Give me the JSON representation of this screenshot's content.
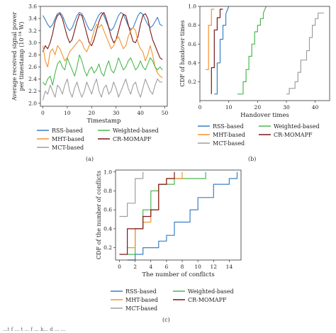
{
  "colors": {
    "rss": "#3b7fc4",
    "mht": "#f5922b",
    "weighted": "#4cb850",
    "mct": "#9e9e9e",
    "cr": "#7a1717"
  },
  "legend_labels": {
    "rss": "RSS-based",
    "mht": "MHT-based",
    "mct": "MCT-based",
    "weighted": "Weighted-based",
    "cr": "CR-MOMAPF"
  },
  "captions": {
    "a": "(a)",
    "b": "(b)",
    "c": "(c)"
  },
  "bottom_text": "...t f ... t ... f ... k... d ... ...",
  "chart_data": [
    {
      "id": "a",
      "type": "line",
      "xlabel": "Timestamp",
      "ylabel_line1": "Average received signal power",
      "ylabel_line2": "per timestamp (10",
      "ylabel_exp": "-14",
      "ylabel_unit": " W)",
      "xlim": [
        -1,
        51
      ],
      "ylim": [
        1.95,
        3.6
      ],
      "xticks": [
        "0",
        "10",
        "20",
        "30",
        "40",
        "50"
      ],
      "xtick_values": [
        0,
        10,
        20,
        30,
        40,
        50
      ],
      "yticks": [
        "2.0",
        "2.2",
        "2.4",
        "2.6",
        "2.8",
        "3.0",
        "3.2",
        "3.4",
        "3.6"
      ],
      "ytick_values": [
        2.0,
        2.2,
        2.4,
        2.6,
        2.8,
        3.0,
        3.2,
        3.4,
        3.6
      ],
      "series": [
        {
          "key": "rss",
          "name": "RSS-based",
          "x": [
            0,
            1,
            2,
            3,
            4,
            5,
            6,
            7,
            8,
            9,
            10,
            11,
            12,
            13,
            14,
            15,
            16,
            17,
            18,
            19,
            20,
            21,
            22,
            23,
            24,
            25,
            26,
            27,
            28,
            29,
            30,
            31,
            32,
            33,
            34,
            35,
            36,
            37,
            38,
            39,
            40,
            41,
            42,
            43,
            44,
            45,
            46,
            47,
            48,
            49
          ],
          "values": [
            3.45,
            3.38,
            3.3,
            3.25,
            3.3,
            3.4,
            3.48,
            3.5,
            3.45,
            3.35,
            3.25,
            3.2,
            3.25,
            3.35,
            3.45,
            3.5,
            3.48,
            3.4,
            3.3,
            3.22,
            3.2,
            3.28,
            3.38,
            3.46,
            3.5,
            3.45,
            3.35,
            3.25,
            3.2,
            3.25,
            3.35,
            3.45,
            3.5,
            3.47,
            3.38,
            3.28,
            3.22,
            3.25,
            3.35,
            3.45,
            3.5,
            3.47,
            3.38,
            3.3,
            3.25,
            3.28,
            3.35,
            3.42,
            3.3,
            3.28
          ]
        },
        {
          "key": "cr",
          "name": "CR-MOMAPF",
          "x": [
            0,
            1,
            2,
            3,
            4,
            5,
            6,
            7,
            8,
            9,
            10,
            11,
            12,
            13,
            14,
            15,
            16,
            17,
            18,
            19,
            20,
            21,
            22,
            23,
            24,
            25,
            26,
            27,
            28,
            29,
            30,
            31,
            32,
            33,
            34,
            35,
            36,
            37,
            38,
            39,
            40,
            41,
            42,
            43,
            44,
            45,
            46,
            47,
            48,
            49
          ],
          "values": [
            2.85,
            2.95,
            2.9,
            3.0,
            3.15,
            3.35,
            3.45,
            3.48,
            3.4,
            3.25,
            3.1,
            3.0,
            3.05,
            3.2,
            3.35,
            3.47,
            3.45,
            3.3,
            3.15,
            3.0,
            2.95,
            3.05,
            3.2,
            3.35,
            3.45,
            3.5,
            3.4,
            3.25,
            3.1,
            3.0,
            3.05,
            3.2,
            3.35,
            3.47,
            3.45,
            3.3,
            3.15,
            3.02,
            3.0,
            3.1,
            3.3,
            3.45,
            3.48,
            3.4,
            3.2,
            3.05,
            2.95,
            2.85,
            2.75,
            2.72
          ]
        },
        {
          "key": "mht",
          "name": "MHT-based",
          "x": [
            0,
            1,
            2,
            3,
            4,
            5,
            6,
            7,
            8,
            9,
            10,
            11,
            12,
            13,
            14,
            15,
            16,
            17,
            18,
            19,
            20,
            21,
            22,
            23,
            24,
            25,
            26,
            27,
            28,
            29,
            30,
            31,
            32,
            33,
            34,
            35,
            36,
            37,
            38,
            39,
            40,
            41,
            42,
            43,
            44,
            45,
            46,
            47,
            48,
            49
          ],
          "values": [
            2.95,
            2.7,
            2.6,
            2.85,
            2.9,
            2.8,
            2.95,
            2.9,
            2.8,
            2.7,
            2.75,
            2.85,
            2.9,
            2.95,
            3.0,
            3.05,
            3.0,
            2.9,
            2.85,
            2.95,
            3.05,
            3.2,
            3.3,
            3.25,
            3.3,
            3.2,
            3.1,
            3.0,
            2.9,
            2.95,
            3.05,
            3.1,
            3.0,
            2.9,
            2.95,
            3.1,
            3.2,
            3.25,
            3.2,
            3.0,
            2.9,
            2.85,
            2.7,
            2.8,
            2.95,
            2.8,
            2.6,
            2.5,
            2.45,
            2.42
          ]
        },
        {
          "key": "weighted",
          "name": "Weighted-based",
          "x": [
            0,
            1,
            2,
            3,
            4,
            5,
            6,
            7,
            8,
            9,
            10,
            11,
            12,
            13,
            14,
            15,
            16,
            17,
            18,
            19,
            20,
            21,
            22,
            23,
            24,
            25,
            26,
            27,
            28,
            29,
            30,
            31,
            32,
            33,
            34,
            35,
            36,
            37,
            38,
            39,
            40,
            41,
            42,
            43,
            44,
            45,
            46,
            47,
            48,
            49
          ],
          "values": [
            2.35,
            2.3,
            2.4,
            2.45,
            2.3,
            2.5,
            2.65,
            2.7,
            2.6,
            2.55,
            2.75,
            2.65,
            2.55,
            2.45,
            2.6,
            2.8,
            2.7,
            2.55,
            2.45,
            2.55,
            2.6,
            2.5,
            2.55,
            2.65,
            2.5,
            2.45,
            2.6,
            2.7,
            2.55,
            2.5,
            2.6,
            2.75,
            2.65,
            2.55,
            2.6,
            2.7,
            2.75,
            2.65,
            2.55,
            2.6,
            2.7,
            2.6,
            2.55,
            2.65,
            2.75,
            2.7,
            2.6,
            2.55,
            2.6,
            2.55
          ]
        },
        {
          "key": "mct",
          "name": "MCT-based",
          "x": [
            0,
            1,
            2,
            3,
            4,
            5,
            6,
            7,
            8,
            9,
            10,
            11,
            12,
            13,
            14,
            15,
            16,
            17,
            18,
            19,
            20,
            21,
            22,
            23,
            24,
            25,
            26,
            27,
            28,
            29,
            30,
            31,
            32,
            33,
            34,
            35,
            36,
            37,
            38,
            39,
            40,
            41,
            42,
            43,
            44,
            45,
            46,
            47,
            48,
            49
          ],
          "values": [
            2.05,
            2.2,
            2.15,
            2.3,
            2.2,
            2.1,
            2.3,
            2.25,
            2.15,
            2.3,
            2.4,
            2.2,
            2.1,
            2.25,
            2.35,
            2.2,
            2.1,
            2.2,
            2.35,
            2.25,
            2.15,
            2.3,
            2.4,
            2.2,
            2.1,
            2.25,
            2.3,
            2.15,
            2.2,
            2.35,
            2.25,
            2.1,
            2.2,
            2.3,
            2.4,
            2.25,
            2.15,
            2.3,
            2.35,
            2.2,
            2.1,
            2.25,
            2.4,
            2.3,
            2.2,
            2.15,
            2.3,
            2.4,
            2.35,
            2.35
          ]
        }
      ]
    },
    {
      "id": "b",
      "type": "line",
      "xlabel": "Handover times",
      "ylabel": "CDF of handover times",
      "xlim": [
        0,
        45
      ],
      "ylim": [
        0,
        1.0
      ],
      "xticks": [
        "0",
        "10",
        "20",
        "30",
        "40"
      ],
      "xtick_values": [
        0,
        10,
        20,
        30,
        40
      ],
      "yticks": [
        "0.2",
        "0.4",
        "0.6",
        "0.8",
        "1.0"
      ],
      "ytick_values": [
        0.2,
        0.4,
        0.6,
        0.8,
        1.0
      ],
      "series": [
        {
          "key": "mht",
          "name": "MHT-based",
          "x": [
            2,
            3,
            3,
            4,
            4,
            5
          ],
          "values": [
            0.33,
            0.33,
            0.8,
            0.8,
            0.97,
            0.97
          ]
        },
        {
          "key": "cr",
          "name": "CR-MOMAPF",
          "x": [
            4,
            4,
            5,
            5,
            6,
            6,
            7,
            7,
            8
          ],
          "values": [
            0.07,
            0.35,
            0.35,
            0.75,
            0.75,
            0.88,
            0.88,
            0.97,
            0.97
          ]
        },
        {
          "key": "rss",
          "name": "RSS-based",
          "x": [
            5,
            6,
            6,
            7,
            7,
            8,
            8,
            9,
            9,
            10
          ],
          "values": [
            0.07,
            0.07,
            0.4,
            0.4,
            0.65,
            0.65,
            0.8,
            0.8,
            0.92,
            1.0
          ]
        },
        {
          "key": "weighted",
          "name": "Weighted-based",
          "x": [
            13,
            15,
            15,
            16,
            16,
            17,
            17,
            18,
            18,
            19,
            19,
            20,
            20,
            21,
            21,
            22,
            22,
            23
          ],
          "values": [
            0.07,
            0.07,
            0.2,
            0.2,
            0.33,
            0.33,
            0.47,
            0.47,
            0.6,
            0.6,
            0.73,
            0.73,
            0.8,
            0.8,
            0.87,
            0.87,
            0.93,
            1.0
          ]
        },
        {
          "key": "mct",
          "name": "MCT-based",
          "x": [
            30,
            31,
            31,
            33,
            33,
            34,
            34,
            35,
            35,
            37,
            37,
            38,
            38,
            39,
            39,
            40,
            40,
            41,
            41,
            43
          ],
          "values": [
            0.07,
            0.07,
            0.13,
            0.13,
            0.2,
            0.2,
            0.3,
            0.3,
            0.43,
            0.43,
            0.53,
            0.53,
            0.67,
            0.67,
            0.8,
            0.8,
            0.87,
            0.87,
            0.93,
            0.93
          ]
        }
      ]
    },
    {
      "id": "c",
      "type": "line",
      "xlabel": "The number of conflicts",
      "ylabel": "CDF of the number of conflicts",
      "xlim": [
        -0.5,
        15.5
      ],
      "ylim": [
        0.07,
        1.02
      ],
      "xticks": [
        "0",
        "2",
        "4",
        "6",
        "8",
        "10",
        "12",
        "14"
      ],
      "xtick_values": [
        0,
        2,
        4,
        6,
        8,
        10,
        12,
        14
      ],
      "yticks": [
        "0.2",
        "0.4",
        "0.6",
        "0.8",
        "1.0"
      ],
      "ytick_values": [
        0.2,
        0.4,
        0.6,
        0.8,
        1.0
      ],
      "series": [
        {
          "key": "mct",
          "name": "MCT-based",
          "x": [
            0,
            1,
            1,
            2,
            2,
            3,
            3
          ],
          "values": [
            0.53,
            0.53,
            0.67,
            0.67,
            0.93,
            0.93,
            1.0
          ]
        },
        {
          "key": "weighted",
          "name": "Weighted-based",
          "x": [
            1,
            2,
            2,
            3,
            3,
            4,
            4,
            5,
            5,
            7,
            7,
            11,
            11
          ],
          "values": [
            0.13,
            0.13,
            0.4,
            0.4,
            0.6,
            0.6,
            0.8,
            0.8,
            0.87,
            0.87,
            0.93,
            0.93,
            1.0
          ]
        },
        {
          "key": "mht",
          "name": "MHT-based",
          "x": [
            1,
            2,
            2,
            3,
            3,
            4,
            4,
            5,
            5,
            6,
            6,
            7,
            7,
            8,
            8
          ],
          "values": [
            0.2,
            0.2,
            0.4,
            0.4,
            0.47,
            0.47,
            0.6,
            0.6,
            0.87,
            0.87,
            0.93,
            0.93,
            0.93,
            0.93,
            1.0
          ]
        },
        {
          "key": "cr",
          "name": "CR-MOMAPF",
          "x": [
            0,
            1,
            1,
            3,
            3,
            4,
            4,
            5,
            5,
            6,
            6,
            7,
            7
          ],
          "values": [
            0.13,
            0.13,
            0.4,
            0.4,
            0.53,
            0.53,
            0.6,
            0.6,
            0.87,
            0.87,
            0.93,
            0.93,
            1.0
          ]
        },
        {
          "key": "rss",
          "name": "RSS-based",
          "x": [
            1,
            2,
            2,
            3,
            3,
            5,
            5,
            6,
            6,
            7,
            7,
            9,
            9,
            10,
            10,
            12,
            12,
            14,
            14,
            15,
            15
          ],
          "values": [
            0.07,
            0.07,
            0.13,
            0.13,
            0.2,
            0.2,
            0.27,
            0.27,
            0.33,
            0.33,
            0.47,
            0.47,
            0.6,
            0.6,
            0.73,
            0.73,
            0.87,
            0.87,
            0.93,
            0.93,
            1.0
          ]
        }
      ]
    }
  ]
}
